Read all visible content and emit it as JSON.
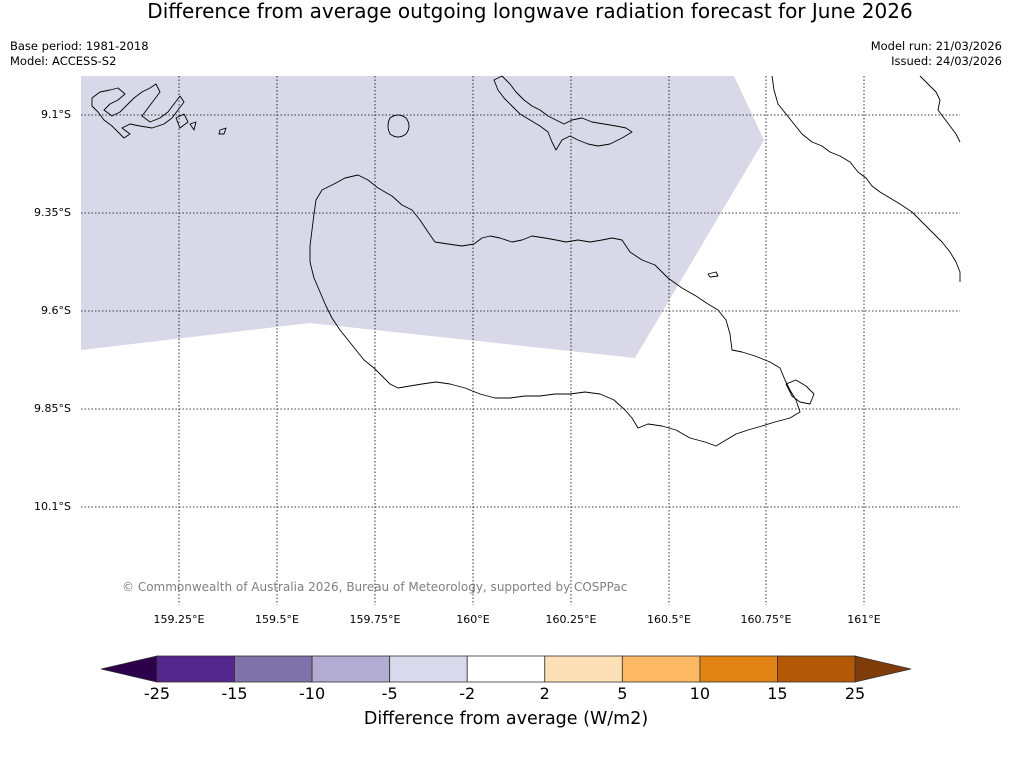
{
  "title": "Difference from average outgoing longwave radiation forecast for June 2026",
  "meta_left": {
    "base_period": "Base period: 1981-2018",
    "model": "Model: ACCESS-S2"
  },
  "meta_right": {
    "model_run": "Model run: 21/03/2026",
    "issued": "Issued: 24/03/2026"
  },
  "map": {
    "lat_labels": [
      "9.1°S",
      "9.35°S",
      "9.6°S",
      "9.85°S",
      "10.1°S"
    ],
    "lon_labels": [
      "159.25°E",
      "159.5°E",
      "159.75°E",
      "160°E",
      "160.25°E",
      "160.5°E",
      "160.75°E",
      "161°E"
    ],
    "copyright": "© Commonwealth of Australia 2026, Bureau of Meteorology, supported by COSPPac",
    "anomaly_region_category": "-5 to -2",
    "anomaly_region_color": "#d8d8e8"
  },
  "colorbar": {
    "label": "Difference from average (W/m2)",
    "ticks": [
      "-25",
      "-15",
      "-10",
      "-5",
      "-2",
      "2",
      "5",
      "10",
      "15",
      "25"
    ],
    "colors": [
      "#54278f",
      "#8073ac",
      "#b2abd2",
      "#d8daeb",
      "#ffffff",
      "#fee0b6",
      "#fdb863",
      "#e08214",
      "#b35806"
    ],
    "extend_low_color": "#2d004b",
    "extend_high_color": "#7f3b08"
  }
}
